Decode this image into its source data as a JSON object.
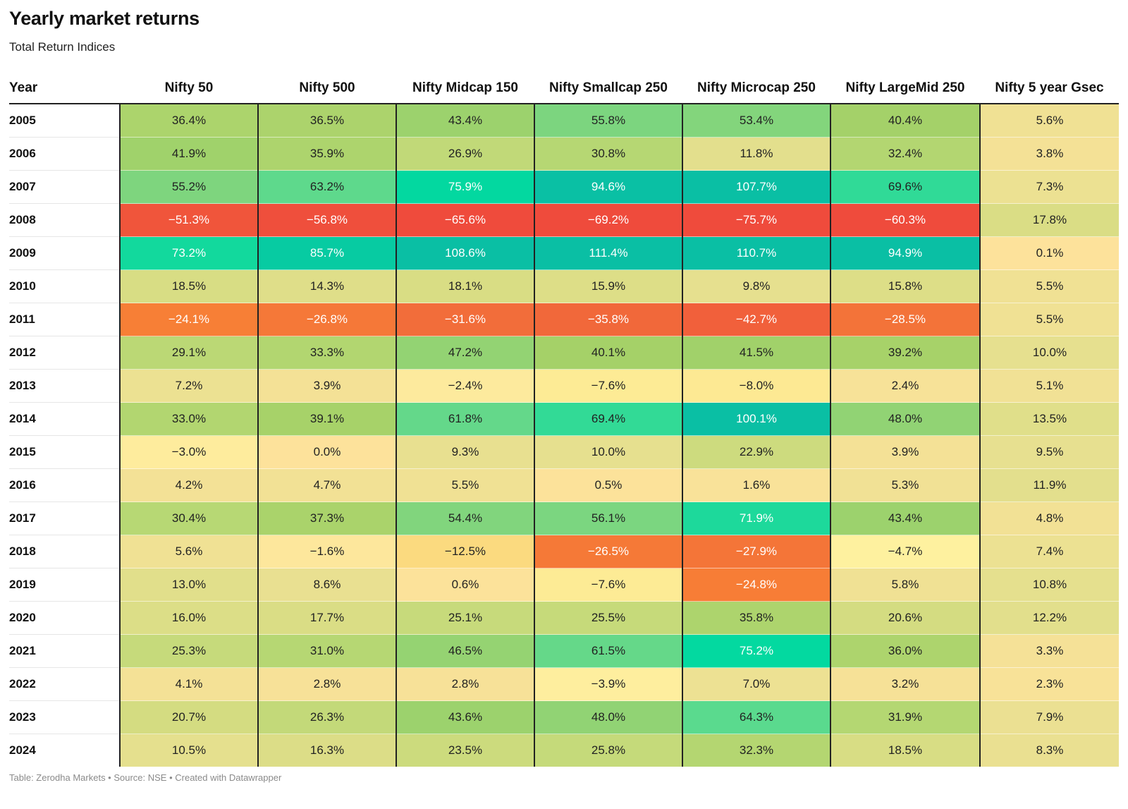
{
  "title": "Yearly market returns",
  "subtitle": "Total Return Indices",
  "footer": "Table: Zerodha Markets • Source: NSE • Created with Datawrapper",
  "chart_data": {
    "type": "table",
    "title": "Yearly market returns",
    "subtitle": "Total Return Indices",
    "row_header": "Year",
    "columns": [
      "Nifty 50",
      "Nifty 500",
      "Nifty Midcap 150",
      "Nifty Smallcap 250",
      "Nifty Microcap 250",
      "Nifty LargeMid 250",
      "Nifty 5 year Gsec"
    ],
    "rows": [
      {
        "year": "2005",
        "values": [
          "36.4%",
          "36.5%",
          "43.4%",
          "55.8%",
          "53.4%",
          "40.4%",
          "5.6%"
        ]
      },
      {
        "year": "2006",
        "values": [
          "41.9%",
          "35.9%",
          "26.9%",
          "30.8%",
          "11.8%",
          "32.4%",
          "3.8%"
        ]
      },
      {
        "year": "2007",
        "values": [
          "55.2%",
          "63.2%",
          "75.9%",
          "94.6%",
          "107.7%",
          "69.6%",
          "7.3%"
        ]
      },
      {
        "year": "2008",
        "values": [
          "−51.3%",
          "−56.8%",
          "−65.6%",
          "−69.2%",
          "−75.7%",
          "−60.3%",
          "17.8%"
        ]
      },
      {
        "year": "2009",
        "values": [
          "73.2%",
          "85.7%",
          "108.6%",
          "111.4%",
          "110.7%",
          "94.9%",
          "0.1%"
        ]
      },
      {
        "year": "2010",
        "values": [
          "18.5%",
          "14.3%",
          "18.1%",
          "15.9%",
          "9.8%",
          "15.8%",
          "5.5%"
        ]
      },
      {
        "year": "2011",
        "values": [
          "−24.1%",
          "−26.8%",
          "−31.6%",
          "−35.8%",
          "−42.7%",
          "−28.5%",
          "5.5%"
        ]
      },
      {
        "year": "2012",
        "values": [
          "29.1%",
          "33.3%",
          "47.2%",
          "40.1%",
          "41.5%",
          "39.2%",
          "10.0%"
        ]
      },
      {
        "year": "2013",
        "values": [
          "7.2%",
          "3.9%",
          "−2.4%",
          "−7.6%",
          "−8.0%",
          "2.4%",
          "5.1%"
        ]
      },
      {
        "year": "2014",
        "values": [
          "33.0%",
          "39.1%",
          "61.8%",
          "69.4%",
          "100.1%",
          "48.0%",
          "13.5%"
        ]
      },
      {
        "year": "2015",
        "values": [
          "−3.0%",
          "0.0%",
          "9.3%",
          "10.0%",
          "22.9%",
          "3.9%",
          "9.5%"
        ]
      },
      {
        "year": "2016",
        "values": [
          "4.2%",
          "4.7%",
          "5.5%",
          "0.5%",
          "1.6%",
          "5.3%",
          "11.9%"
        ]
      },
      {
        "year": "2017",
        "values": [
          "30.4%",
          "37.3%",
          "54.4%",
          "56.1%",
          "71.9%",
          "43.4%",
          "4.8%"
        ]
      },
      {
        "year": "2018",
        "values": [
          "5.6%",
          "−1.6%",
          "−12.5%",
          "−26.5%",
          "−27.9%",
          "−4.7%",
          "7.4%"
        ]
      },
      {
        "year": "2019",
        "values": [
          "13.0%",
          "8.6%",
          "0.6%",
          "−7.6%",
          "−24.8%",
          "5.8%",
          "10.8%"
        ]
      },
      {
        "year": "2020",
        "values": [
          "16.0%",
          "17.7%",
          "25.1%",
          "25.5%",
          "35.8%",
          "20.6%",
          "12.2%"
        ]
      },
      {
        "year": "2021",
        "values": [
          "25.3%",
          "31.0%",
          "46.5%",
          "61.5%",
          "75.2%",
          "36.0%",
          "3.3%"
        ]
      },
      {
        "year": "2022",
        "values": [
          "4.1%",
          "2.8%",
          "2.8%",
          "−3.9%",
          "7.0%",
          "3.2%",
          "2.3%"
        ]
      },
      {
        "year": "2023",
        "values": [
          "20.7%",
          "26.3%",
          "43.6%",
          "48.0%",
          "64.3%",
          "31.9%",
          "7.9%"
        ]
      },
      {
        "year": "2024",
        "values": [
          "10.5%",
          "16.3%",
          "23.5%",
          "25.8%",
          "32.3%",
          "18.5%",
          "8.3%"
        ]
      }
    ],
    "color_scale": {
      "stops": [
        {
          "value": -60,
          "color": "#ef4b3c"
        },
        {
          "value": -30,
          "color": "#f26f3a"
        },
        {
          "value": -22,
          "color": "#f98534"
        },
        {
          "value": -12,
          "color": "#fbde83"
        },
        {
          "value": -5,
          "color": "#fef29f"
        },
        {
          "value": 0,
          "color": "#fde29b"
        },
        {
          "value": 10,
          "color": "#e6e08f"
        },
        {
          "value": 20,
          "color": "#d6dc82"
        },
        {
          "value": 30,
          "color": "#b8d874"
        },
        {
          "value": 40,
          "color": "#a5d168"
        },
        {
          "value": 55,
          "color": "#7fd57e"
        },
        {
          "value": 65,
          "color": "#57da8f"
        },
        {
          "value": 75,
          "color": "#03d9a0"
        },
        {
          "value": 95,
          "color": "#0abfa4"
        }
      ],
      "text_dark": "#222222",
      "text_light": "#ffffff"
    }
  }
}
